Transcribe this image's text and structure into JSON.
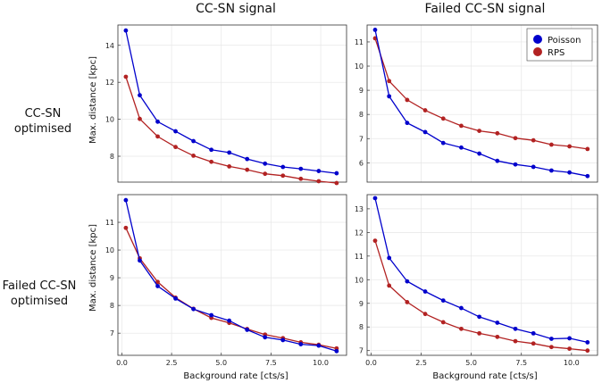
{
  "column_titles": [
    "CC-SN signal",
    "Failed CC-SN signal"
  ],
  "row_titles": [
    [
      "CC-SN",
      "optimised"
    ],
    [
      "Failed CC-SN",
      "optimised"
    ]
  ],
  "legend": [
    {
      "name": "Poisson",
      "color": "#0000cc"
    },
    {
      "name": "RPS",
      "color": "#b22222"
    }
  ],
  "colors": {
    "Poisson": "#0000cc",
    "RPS": "#b22222"
  },
  "chart_data": [
    {
      "type": "line",
      "id": "top-left",
      "xlabel": "",
      "ylabel": "Max. distance [kpc]",
      "xlim": [
        -0.2,
        11.3
      ],
      "ylim": [
        6.6,
        15.1
      ],
      "yticks": [
        8,
        10,
        12,
        14
      ],
      "yticklabels": [
        "8",
        "10",
        "12",
        "14"
      ],
      "xticks": [],
      "x": [
        0.2,
        0.9,
        1.8,
        2.7,
        3.6,
        4.5,
        5.4,
        6.3,
        7.2,
        8.1,
        9.0,
        9.9,
        10.8
      ],
      "series": [
        {
          "name": "Poisson",
          "values": [
            14.8,
            11.3,
            9.87,
            9.35,
            8.82,
            8.35,
            8.2,
            7.85,
            7.6,
            7.42,
            7.32,
            7.2,
            7.08
          ]
        },
        {
          "name": "RPS",
          "values": [
            12.3,
            10.02,
            9.07,
            8.5,
            8.03,
            7.7,
            7.45,
            7.27,
            7.05,
            6.95,
            6.78,
            6.65,
            6.55
          ]
        }
      ]
    },
    {
      "type": "line",
      "id": "top-right",
      "xlabel": "",
      "ylabel": "",
      "xlim": [
        -0.2,
        11.3
      ],
      "ylim": [
        5.2,
        11.7
      ],
      "yticks": [
        6,
        7,
        8,
        9,
        10,
        11
      ],
      "yticklabels": [
        "6",
        "7",
        "8",
        "9",
        "10",
        "11"
      ],
      "xticks": [],
      "legend_position": "top-right",
      "x": [
        0.2,
        0.9,
        1.8,
        2.7,
        3.6,
        4.5,
        5.4,
        6.3,
        7.2,
        8.1,
        9.0,
        9.9,
        10.8
      ],
      "series": [
        {
          "name": "Poisson",
          "values": [
            11.5,
            8.75,
            7.65,
            7.27,
            6.82,
            6.63,
            6.38,
            6.08,
            5.93,
            5.83,
            5.68,
            5.6,
            5.45
          ]
        },
        {
          "name": "RPS",
          "values": [
            11.15,
            9.38,
            8.6,
            8.17,
            7.83,
            7.53,
            7.32,
            7.22,
            7.02,
            6.93,
            6.75,
            6.68,
            6.57
          ]
        }
      ]
    },
    {
      "type": "line",
      "id": "bottom-left",
      "xlabel": "Background rate [cts/s]",
      "ylabel": "Max. distance [kpc]",
      "xlim": [
        -0.2,
        11.3
      ],
      "ylim": [
        6.2,
        12.0
      ],
      "yticks": [
        7,
        8,
        9,
        10,
        11
      ],
      "yticklabels": [
        "7",
        "8",
        "9",
        "10",
        "11"
      ],
      "xticks": [
        0,
        2.5,
        5,
        7.5,
        10
      ],
      "xticklabels": [
        "0.0",
        "2.5",
        "5.0",
        "7.5",
        "10.0"
      ],
      "x": [
        0.2,
        0.9,
        1.8,
        2.7,
        3.6,
        4.5,
        5.4,
        6.3,
        7.2,
        8.1,
        9.0,
        9.9,
        10.8
      ],
      "series": [
        {
          "name": "Poisson",
          "values": [
            11.8,
            9.62,
            8.7,
            8.25,
            7.87,
            7.65,
            7.45,
            7.12,
            6.85,
            6.75,
            6.6,
            6.55,
            6.35
          ]
        },
        {
          "name": "RPS",
          "values": [
            10.8,
            9.7,
            8.85,
            8.28,
            7.88,
            7.55,
            7.37,
            7.15,
            6.95,
            6.82,
            6.67,
            6.58,
            6.45
          ]
        }
      ]
    },
    {
      "type": "line",
      "id": "bottom-right",
      "xlabel": "Background rate [cts/s]",
      "ylabel": "",
      "xlim": [
        -0.2,
        11.3
      ],
      "ylim": [
        6.8,
        13.6
      ],
      "yticks": [
        7,
        8,
        9,
        10,
        11,
        12,
        13
      ],
      "yticklabels": [
        "7",
        "8",
        "9",
        "10",
        "11",
        "12",
        "13"
      ],
      "xticks": [
        0,
        2.5,
        5,
        7.5,
        10
      ],
      "xticklabels": [
        "0.0",
        "2.5",
        "5.0",
        "7.5",
        "10.0"
      ],
      "x": [
        0.2,
        0.9,
        1.8,
        2.7,
        3.6,
        4.5,
        5.4,
        6.3,
        7.2,
        8.1,
        9.0,
        9.9,
        10.8
      ],
      "series": [
        {
          "name": "Poisson",
          "values": [
            13.45,
            10.92,
            9.93,
            9.5,
            9.12,
            8.8,
            8.43,
            8.18,
            7.92,
            7.73,
            7.5,
            7.52,
            7.35
          ]
        },
        {
          "name": "RPS",
          "values": [
            11.65,
            9.75,
            9.05,
            8.55,
            8.2,
            7.92,
            7.73,
            7.58,
            7.4,
            7.3,
            7.15,
            7.08,
            7.0
          ]
        }
      ]
    }
  ]
}
